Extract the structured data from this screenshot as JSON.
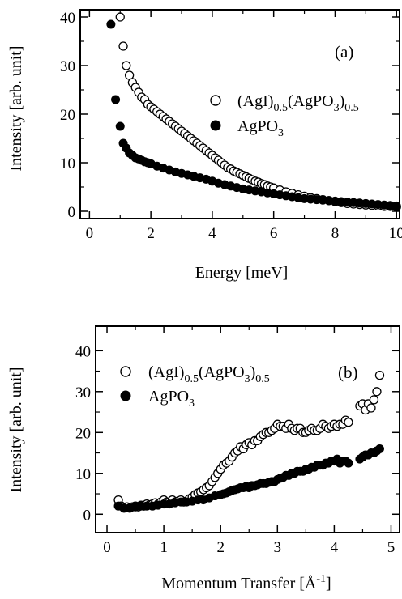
{
  "chart_data": [
    {
      "type": "scatter",
      "panel_label": "(a)",
      "xlabel": "Energy [meV]",
      "ylabel": "Intensity [arb. unit]",
      "xlim": [
        -0.3,
        10.1
      ],
      "ylim": [
        -1.5,
        41.5
      ],
      "xticks": [
        0,
        2,
        4,
        6,
        8,
        10
      ],
      "yticks": [
        0,
        10,
        20,
        30,
        40
      ],
      "series": [
        {
          "name_main": "(AgI)",
          "name_sub1": "0.5",
          "name_mid": "(AgPO",
          "name_sub2": "3",
          "name_close": ")",
          "name_sub3": "0.5",
          "marker": "open-circle",
          "x": [
            1.0,
            1.1,
            1.2,
            1.3,
            1.4,
            1.5,
            1.6,
            1.7,
            1.8,
            1.9,
            2.0,
            2.1,
            2.2,
            2.3,
            2.4,
            2.5,
            2.6,
            2.7,
            2.8,
            2.9,
            3.0,
            3.1,
            3.2,
            3.3,
            3.4,
            3.5,
            3.6,
            3.7,
            3.8,
            3.9,
            4.0,
            4.1,
            4.2,
            4.3,
            4.4,
            4.5,
            4.6,
            4.7,
            4.8,
            4.9,
            5.0,
            5.1,
            5.2,
            5.3,
            5.4,
            5.5,
            5.6,
            5.7,
            5.8,
            5.9,
            6.0,
            6.2,
            6.4,
            6.6,
            6.8,
            7.0,
            7.2,
            7.4,
            7.6,
            7.8,
            8.0,
            8.2,
            8.4,
            8.6,
            8.8,
            9.0,
            9.2,
            9.4,
            9.6,
            9.8,
            10.0
          ],
          "y": [
            40,
            34,
            30,
            28,
            26.5,
            25.5,
            24.5,
            23.5,
            23,
            22,
            21.5,
            21,
            20.5,
            20,
            19.5,
            19,
            18.5,
            18,
            17.5,
            17,
            16.5,
            16,
            15.5,
            15,
            14.5,
            14,
            13.5,
            13,
            12.5,
            12,
            11.5,
            11,
            10.5,
            10,
            9.5,
            9,
            8.7,
            8.3,
            8,
            7.7,
            7.4,
            7.1,
            6.8,
            6.5,
            6.2,
            6,
            5.7,
            5.5,
            5.2,
            5,
            4.8,
            4.4,
            4,
            3.7,
            3.4,
            3.1,
            2.8,
            2.6,
            2.4,
            2.2,
            2,
            1.8,
            1.6,
            1.5,
            1.4,
            1.3,
            1.2,
            1.1,
            1.0,
            1.0,
            0.9
          ]
        },
        {
          "name_main": "AgPO",
          "name_sub1": "3",
          "marker": "filled-circle",
          "x": [
            0.7,
            0.85,
            1.0,
            1.1,
            1.2,
            1.3,
            1.4,
            1.5,
            1.6,
            1.7,
            1.8,
            1.9,
            2.0,
            2.2,
            2.4,
            2.6,
            2.8,
            3.0,
            3.2,
            3.4,
            3.6,
            3.8,
            4.0,
            4.2,
            4.4,
            4.6,
            4.8,
            5.0,
            5.2,
            5.4,
            5.6,
            5.8,
            6.0,
            6.2,
            6.4,
            6.6,
            6.8,
            7.0,
            7.2,
            7.4,
            7.6,
            7.8,
            8.0,
            8.2,
            8.4,
            8.6,
            8.8,
            9.0,
            9.2,
            9.4,
            9.6,
            9.8,
            10.0
          ],
          "y": [
            38.5,
            23,
            17.5,
            14,
            13,
            12,
            11.5,
            11,
            10.8,
            10.5,
            10.2,
            10,
            9.8,
            9.3,
            8.9,
            8.5,
            8.1,
            7.8,
            7.5,
            7.2,
            6.9,
            6.6,
            6.2,
            5.8,
            5.5,
            5.2,
            4.9,
            4.6,
            4.4,
            4.2,
            4,
            3.8,
            3.6,
            3.4,
            3.2,
            3.0,
            2.8,
            2.6,
            2.5,
            2.4,
            2.3,
            2.2,
            2.1,
            2.0,
            1.9,
            1.8,
            1.7,
            1.6,
            1.5,
            1.4,
            1.3,
            1.2,
            1.1
          ]
        }
      ]
    },
    {
      "type": "scatter",
      "panel_label": "(b)",
      "xlabel_main": "Momentum Transfer [Å",
      "xlabel_sup": "-1",
      "xlabel_close": "]",
      "ylabel": "Intensity [arb. unit]",
      "xlim": [
        -0.2,
        5.15
      ],
      "ylim": [
        -4.5,
        46
      ],
      "xticks": [
        0,
        1,
        2,
        3,
        4,
        5
      ],
      "yticks": [
        0,
        10,
        20,
        30,
        40
      ],
      "series": [
        {
          "name_main": "(AgI)",
          "name_sub1": "0.5",
          "name_mid": "(AgPO",
          "name_sub2": "3",
          "name_close": ")",
          "name_sub3": "0.5",
          "marker": "open-circle",
          "x": [
            0.2,
            0.25,
            0.3,
            0.35,
            0.4,
            0.45,
            0.5,
            0.55,
            0.6,
            0.65,
            0.7,
            0.75,
            0.8,
            0.85,
            0.9,
            0.95,
            1.0,
            1.05,
            1.1,
            1.15,
            1.2,
            1.25,
            1.3,
            1.35,
            1.4,
            1.45,
            1.5,
            1.55,
            1.6,
            1.65,
            1.7,
            1.75,
            1.8,
            1.85,
            1.9,
            1.95,
            2.0,
            2.05,
            2.1,
            2.15,
            2.2,
            2.25,
            2.3,
            2.35,
            2.4,
            2.45,
            2.5,
            2.55,
            2.6,
            2.65,
            2.7,
            2.75,
            2.8,
            2.85,
            2.9,
            2.95,
            3.0,
            3.05,
            3.1,
            3.15,
            3.2,
            3.25,
            3.3,
            3.35,
            3.4,
            3.45,
            3.5,
            3.55,
            3.6,
            3.65,
            3.7,
            3.75,
            3.8,
            3.85,
            3.9,
            3.95,
            4.0,
            4.05,
            4.1,
            4.15,
            4.2,
            4.25,
            4.45,
            4.5,
            4.55,
            4.6,
            4.65,
            4.7,
            4.75,
            4.8
          ],
          "y": [
            3.5,
            2,
            1.5,
            1.8,
            1.5,
            1.8,
            2,
            1.8,
            2.2,
            2,
            2.5,
            2.3,
            2.5,
            2.8,
            2.5,
            3,
            3.5,
            3,
            3,
            3.5,
            3,
            3.2,
            3.5,
            3,
            3.2,
            3.8,
            4.2,
            4.8,
            5.2,
            5.5,
            6,
            6.5,
            7,
            8,
            9,
            10,
            11,
            12,
            12.5,
            13,
            14,
            15,
            15.5,
            16.5,
            16,
            17,
            17.5,
            17,
            18,
            18,
            19,
            19.5,
            20,
            20,
            20.5,
            21,
            22,
            21.5,
            21.5,
            21,
            22,
            21,
            20.5,
            21,
            21,
            20,
            20,
            20.5,
            21,
            20.5,
            20.5,
            21,
            22,
            21.5,
            21,
            21.5,
            22,
            21.5,
            22,
            22,
            23,
            22.5,
            26.5,
            27,
            25.5,
            27,
            26,
            28,
            30,
            34
          ]
        },
        {
          "name_main": "AgPO",
          "name_sub1": "3",
          "marker": "filled-circle",
          "x": [
            0.2,
            0.3,
            0.4,
            0.5,
            0.6,
            0.7,
            0.8,
            0.9,
            1.0,
            1.1,
            1.2,
            1.3,
            1.4,
            1.5,
            1.6,
            1.7,
            1.8,
            1.9,
            2.0,
            2.05,
            2.1,
            2.15,
            2.2,
            2.25,
            2.3,
            2.35,
            2.4,
            2.45,
            2.5,
            2.55,
            2.6,
            2.65,
            2.7,
            2.75,
            2.8,
            2.85,
            2.9,
            2.95,
            3.0,
            3.05,
            3.1,
            3.15,
            3.2,
            3.25,
            3.3,
            3.35,
            3.4,
            3.45,
            3.5,
            3.55,
            3.6,
            3.65,
            3.7,
            3.75,
            3.8,
            3.85,
            3.9,
            3.95,
            4.0,
            4.05,
            4.1,
            4.15,
            4.2,
            4.25,
            4.45,
            4.5,
            4.55,
            4.6,
            4.65,
            4.7,
            4.75,
            4.8
          ],
          "y": [
            2,
            1.5,
            1.5,
            1.8,
            2,
            2,
            2,
            2.2,
            2.5,
            2.5,
            2.8,
            3,
            3,
            3.2,
            3.5,
            3.5,
            4,
            4.5,
            4.8,
            5,
            5.2,
            5.5,
            5.8,
            6,
            6.2,
            6.5,
            6.5,
            6.8,
            6.5,
            7,
            7,
            7.2,
            7.5,
            7.5,
            7.5,
            7.8,
            8,
            8,
            8.5,
            8.8,
            9,
            9.5,
            9.5,
            10,
            10,
            10.5,
            10.5,
            10.5,
            11,
            11,
            11.5,
            11.5,
            12,
            12,
            12,
            12.5,
            12.5,
            13,
            13,
            13.5,
            12.5,
            13,
            13,
            12.5,
            13.5,
            14,
            14.5,
            14.5,
            15,
            15,
            15.5,
            16
          ]
        }
      ]
    }
  ]
}
